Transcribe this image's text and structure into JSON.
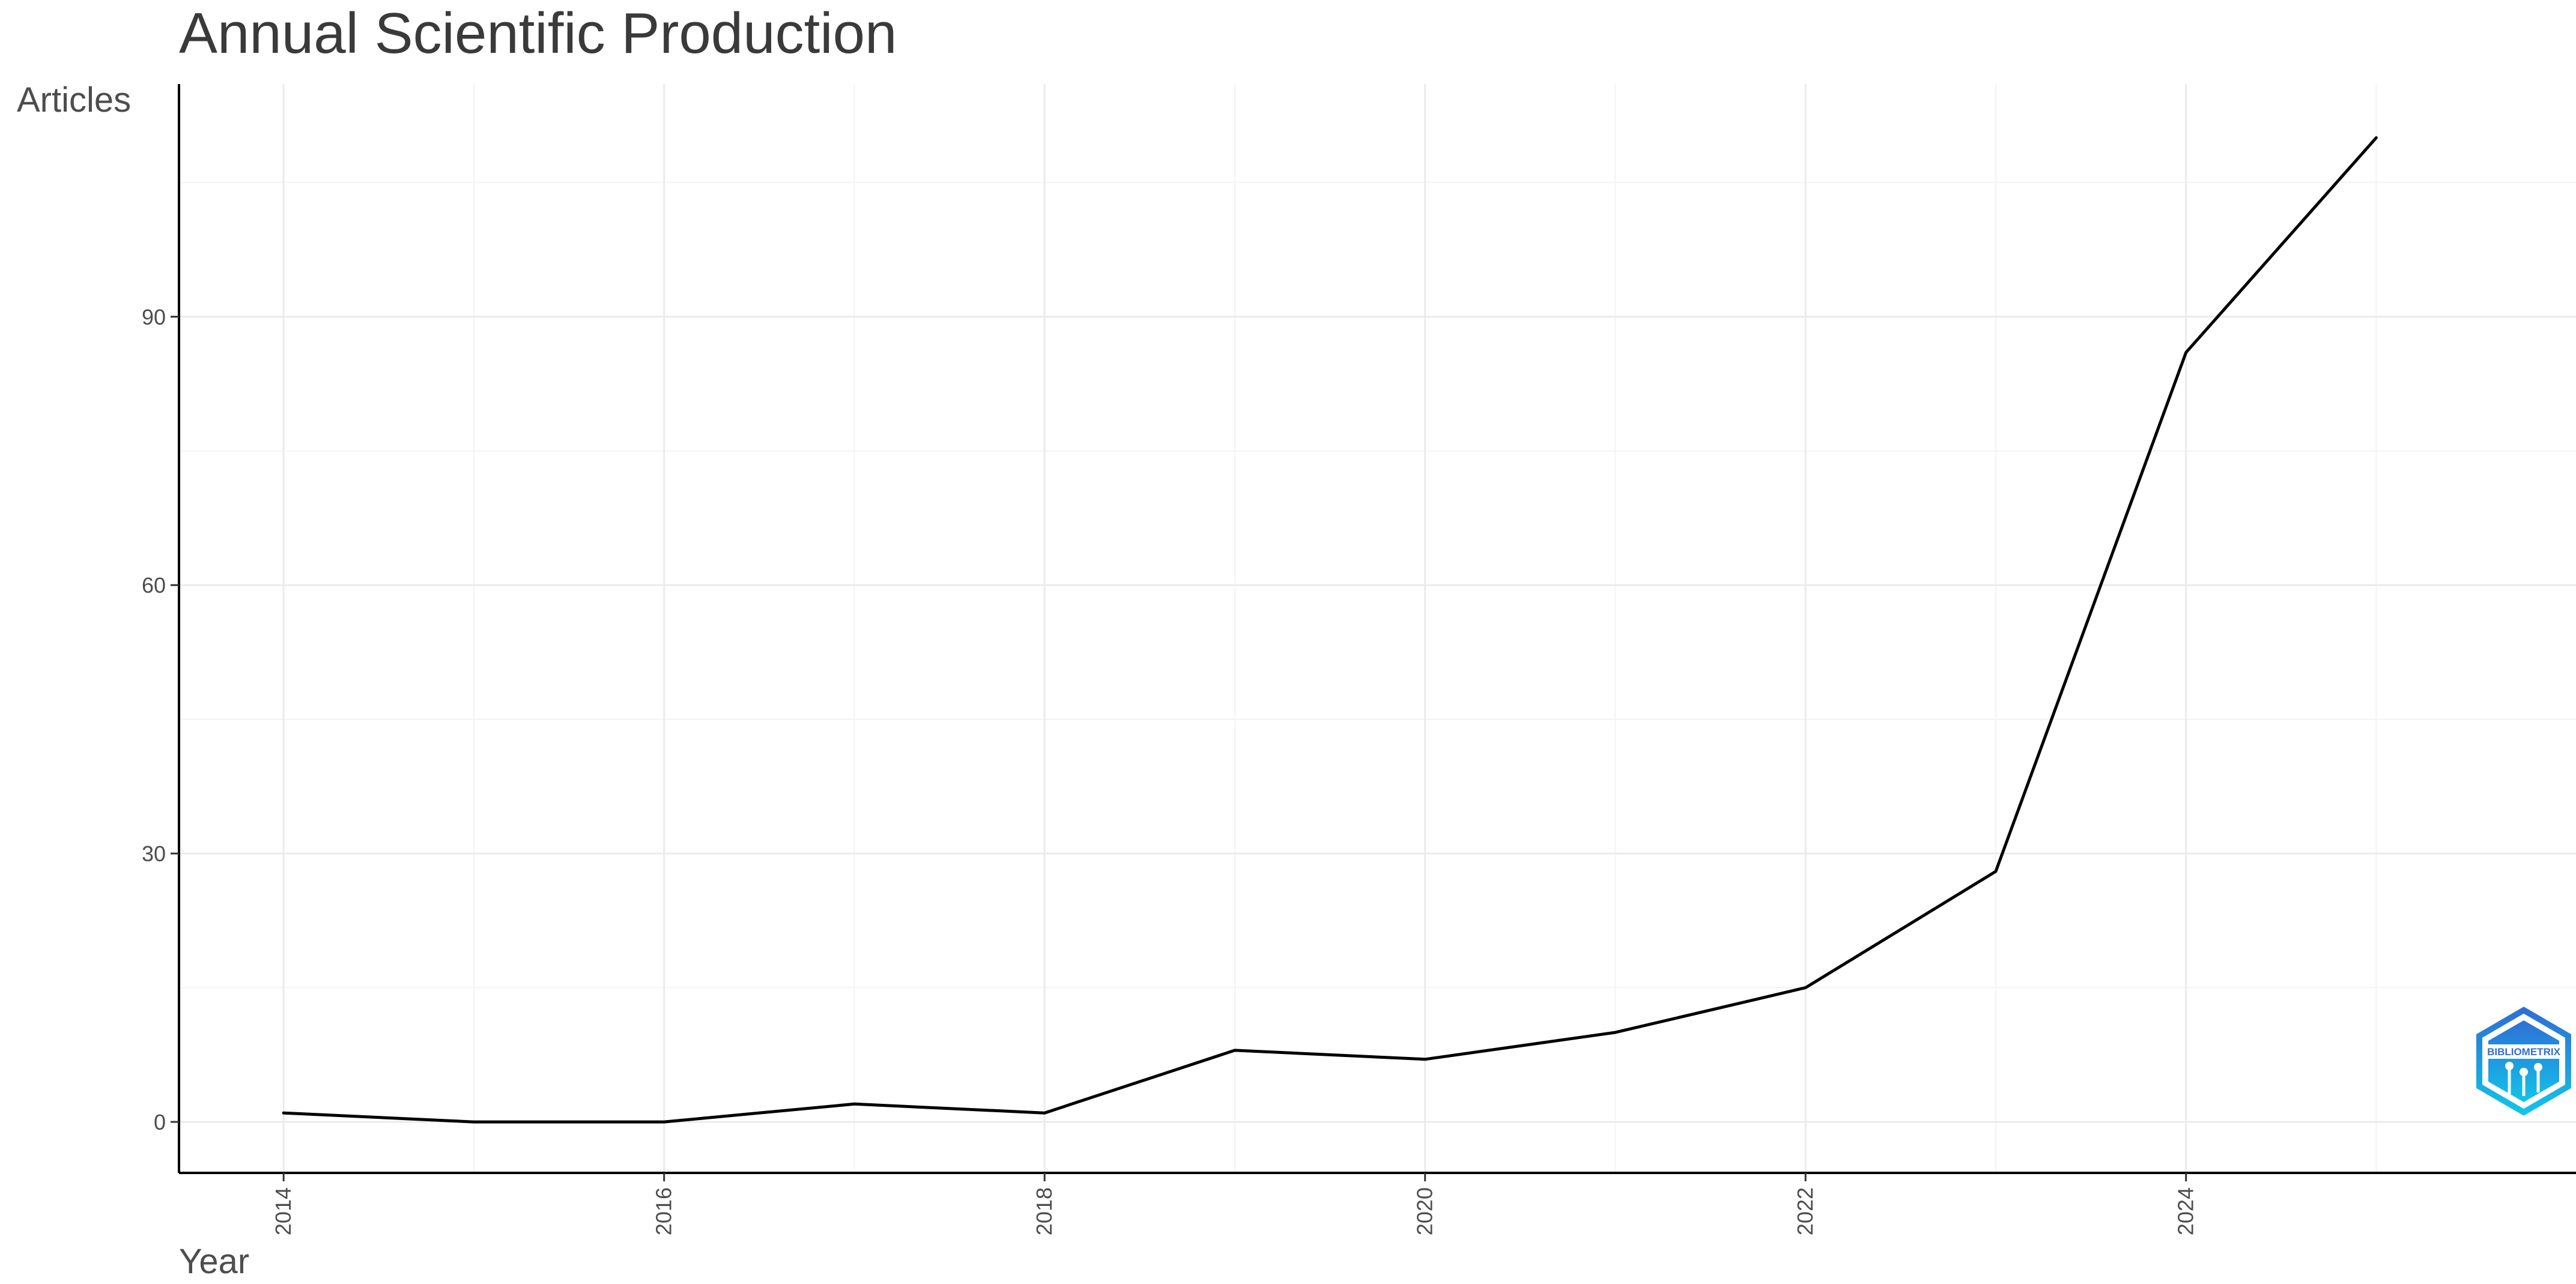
{
  "chart_data": {
    "type": "line",
    "title": "Annual Scientific Production",
    "xlabel": "Year",
    "ylabel": "Articles",
    "x": [
      2014,
      2015,
      2016,
      2017,
      2018,
      2019,
      2020,
      2021,
      2022,
      2023,
      2024,
      2025
    ],
    "series": [
      {
        "values": [
          1,
          0,
          0,
          2,
          1,
          8,
          7,
          10,
          15,
          28,
          86,
          110
        ],
        "color": "#000000"
      }
    ],
    "xlim": [
      2013.45,
      2026.05
    ],
    "ylim": [
      -5.7,
      116
    ],
    "x_ticks": [
      2014,
      2016,
      2018,
      2020,
      2022,
      2024
    ],
    "x_tick_labels": [
      "2014",
      "2016",
      "2018",
      "2020",
      "2022",
      "2024"
    ],
    "y_ticks": [
      0,
      30,
      60,
      90
    ],
    "y_tick_labels": [
      "0",
      "30",
      "60",
      "90"
    ],
    "grid": true,
    "legend": false,
    "logo": {
      "icon": "bibliometrix-hexagon-logo",
      "text": "BIBLIOMETRIX",
      "colors": [
        "#2f6fd6",
        "#11c4e8"
      ]
    }
  }
}
